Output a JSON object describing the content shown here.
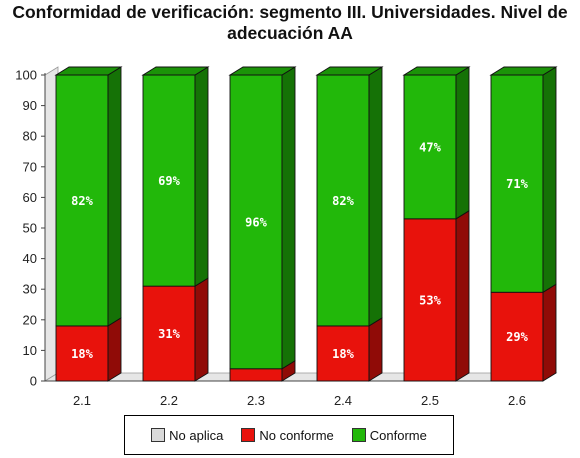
{
  "chart_data": {
    "type": "bar",
    "stacked": true,
    "title": "Conformidad de verificación: segmento III. Universidades. Nivel de adecuación AA",
    "categories": [
      "2.1",
      "2.2",
      "2.3",
      "2.4",
      "2.5",
      "2.6"
    ],
    "ylim": [
      0,
      100
    ],
    "yticks": [
      0,
      10,
      20,
      30,
      40,
      50,
      60,
      70,
      80,
      90,
      100
    ],
    "xlabel": "",
    "ylabel": "",
    "series": [
      {
        "name": "No aplica",
        "values": [
          0,
          0,
          0,
          0,
          0,
          0
        ],
        "color": "#d9d9d9"
      },
      {
        "name": "No conforme",
        "values": [
          18,
          31,
          4,
          18,
          53,
          29
        ],
        "labels": [
          "18%",
          "31%",
          "",
          "18%",
          "53%",
          "29%"
        ],
        "color": "#e8120c"
      },
      {
        "name": "Conforme",
        "values": [
          82,
          69,
          96,
          82,
          47,
          71
        ],
        "labels": [
          "82%",
          "69%",
          "96%",
          "82%",
          "47%",
          "71%"
        ],
        "color": "#22b80a"
      }
    ],
    "legend": "bottom-center",
    "grid": false
  }
}
